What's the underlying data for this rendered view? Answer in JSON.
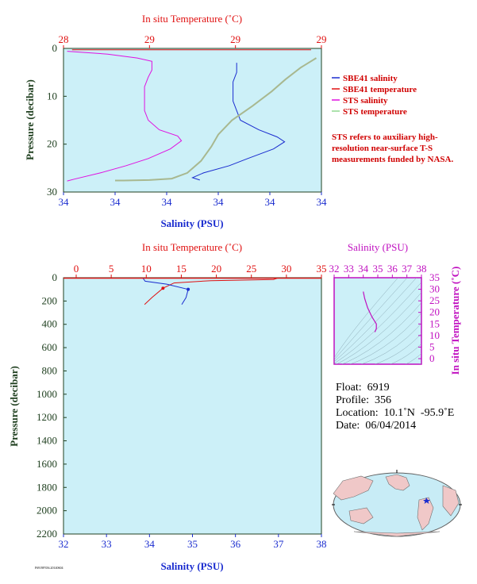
{
  "top_chart": {
    "top_axis_title": "In situ Temperature (˚C)",
    "top_ticks": [
      "28",
      "29",
      "29",
      "29"
    ],
    "bottom_axis_title": "Salinity (PSU)",
    "bottom_ticks": [
      "34",
      "34",
      "34",
      "34",
      "34",
      "34"
    ],
    "left_axis_title": "Pressure (decibar)",
    "left_ticks": [
      "0",
      "10",
      "20",
      "30"
    ],
    "legend": [
      {
        "label": "SBE41 salinity",
        "color": "#1a2ccf"
      },
      {
        "label": "SBE41 temperature",
        "color": "#e01010"
      },
      {
        "label": "STS salinity",
        "color": "#e010e0"
      },
      {
        "label": "STS temperature",
        "color": "#90d890"
      }
    ],
    "note": "STS refers to auxiliary high-resolution near-surface T-S measurements funded by NASA."
  },
  "bottom_chart": {
    "top_axis_title": "In situ Temperature (˚C)",
    "top_ticks": [
      "0",
      "5",
      "10",
      "15",
      "20",
      "25",
      "30",
      "35"
    ],
    "bottom_axis_title": "Salinity (PSU)",
    "bottom_ticks": [
      "32",
      "33",
      "34",
      "35",
      "36",
      "37",
      "38"
    ],
    "left_axis_title": "Pressure (decibar)",
    "left_ticks": [
      "0",
      "200",
      "400",
      "600",
      "800",
      "1000",
      "1200",
      "1400",
      "1600",
      "1800",
      "2000",
      "2200"
    ]
  },
  "ts_chart": {
    "top_axis_title": "Salinity (PSU)",
    "top_ticks": [
      "32",
      "33",
      "34",
      "35",
      "36",
      "37",
      "38"
    ],
    "right_axis_title": "In situ Temperature (˚C)",
    "right_ticks": [
      "35",
      "30",
      "25",
      "20",
      "15",
      "10",
      "5",
      "0"
    ]
  },
  "float_info": {
    "float": "Float:  6919",
    "profile": "Profile:  356",
    "location": "Location:  10.1˚N  -95.9˚E",
    "date": "Date:  06/04/2014"
  },
  "footer_code": "F6919P356.20140604",
  "colors": {
    "plot_bg": "#ccf0f8",
    "temperature": "#e01010",
    "salinity": "#1a2ccf",
    "sts_salinity": "#e010e0",
    "sts_temperature": "#a8b890",
    "ts_axis": "#c010c0",
    "axis_dark": "#204020"
  },
  "chart_data": [
    {
      "type": "line",
      "title": "",
      "xlabel": "Salinity (PSU)",
      "x2label": "In situ Temperature (˚C)",
      "ylabel": "Pressure (decibar)",
      "ylim": [
        30,
        0
      ],
      "temperature_range": [
        28.0,
        29.5
      ],
      "salinity_range": [
        33.6,
        34.3
      ],
      "series": [
        {
          "name": "SBE41 salinity",
          "axis": "salinity",
          "points": [
            [
              34.07,
              3
            ],
            [
              34.07,
              5
            ],
            [
              34.06,
              7
            ],
            [
              34.06,
              9
            ],
            [
              34.06,
              11
            ],
            [
              34.07,
              13
            ],
            [
              34.08,
              15
            ],
            [
              34.13,
              17
            ],
            [
              34.18,
              18.5
            ],
            [
              34.2,
              19.5
            ],
            [
              34.17,
              21
            ],
            [
              34.1,
              23
            ],
            [
              34.05,
              24.5
            ],
            [
              33.98,
              26
            ],
            [
              33.95,
              27
            ],
            [
              33.97,
              27.5
            ]
          ]
        },
        {
          "name": "SBE41 temperature",
          "axis": "temperature",
          "points": [
            [
              28.05,
              0.3
            ],
            [
              29.44,
              0.3
            ]
          ]
        },
        {
          "name": "STS salinity",
          "axis": "salinity",
          "points": [
            [
              33.61,
              0.6
            ],
            [
              33.72,
              1.2
            ],
            [
              33.8,
              2.0
            ],
            [
              33.84,
              2.7
            ],
            [
              33.84,
              4.5
            ],
            [
              33.83,
              6.0
            ],
            [
              33.82,
              8.0
            ],
            [
              33.82,
              10.5
            ],
            [
              33.82,
              13.0
            ],
            [
              33.83,
              15.0
            ],
            [
              33.86,
              17.0
            ],
            [
              33.91,
              18.3
            ],
            [
              33.92,
              19.3
            ],
            [
              33.89,
              21.0
            ],
            [
              33.83,
              23.0
            ],
            [
              33.77,
              24.5
            ],
            [
              33.7,
              26.0
            ],
            [
              33.63,
              27.3
            ],
            [
              33.61,
              27.7
            ]
          ]
        },
        {
          "name": "STS temperature",
          "axis": "temperature",
          "points": [
            [
              29.47,
              2.0
            ],
            [
              29.38,
              4.0
            ],
            [
              29.29,
              6.5
            ],
            [
              29.21,
              9.0
            ],
            [
              29.1,
              12.0
            ],
            [
              28.98,
              15.0
            ],
            [
              28.9,
              18.0
            ],
            [
              28.86,
              20.5
            ],
            [
              28.8,
              23.5
            ],
            [
              28.72,
              26.0
            ],
            [
              28.63,
              27.2
            ],
            [
              28.5,
              27.5
            ],
            [
              28.35,
              27.6
            ],
            [
              28.3,
              27.6
            ]
          ]
        }
      ]
    },
    {
      "type": "line",
      "title": "",
      "xlabel": "Salinity (PSU)",
      "x2label": "In situ Temperature (˚C)",
      "ylabel": "Pressure (decibar)",
      "ylim": [
        2200,
        0
      ],
      "temperature_range": [
        0,
        35
      ],
      "salinity_range": [
        32,
        38
      ],
      "series": [
        {
          "name": "temperature",
          "axis": "temperature",
          "points": [
            [
              29.0,
              5
            ],
            [
              28.5,
              15
            ],
            [
              20.0,
              25
            ],
            [
              15.0,
              45
            ],
            [
              13.5,
              90
            ],
            [
              12.0,
              170
            ],
            [
              11.0,
              230
            ]
          ]
        },
        {
          "name": "salinity",
          "axis": "salinity",
          "points": [
            [
              33.85,
              5
            ],
            [
              33.9,
              30
            ],
            [
              34.4,
              55
            ],
            [
              34.9,
              100
            ],
            [
              34.85,
              170
            ],
            [
              34.75,
              230
            ]
          ]
        }
      ]
    },
    {
      "type": "scatter",
      "title": "",
      "xlabel": "Salinity (PSU)",
      "ylabel": "In situ Temperature (˚C)",
      "xlim": [
        32,
        38
      ],
      "ylim": [
        -5,
        35
      ],
      "series": [
        {
          "name": "T-S profile",
          "points": [
            [
              34.0,
              29.0
            ],
            [
              34.1,
              26.0
            ],
            [
              34.3,
              22.0
            ],
            [
              34.6,
              18.0
            ],
            [
              34.9,
              15.0
            ],
            [
              34.9,
              13.0
            ],
            [
              34.8,
              11.5
            ]
          ]
        }
      ]
    }
  ]
}
